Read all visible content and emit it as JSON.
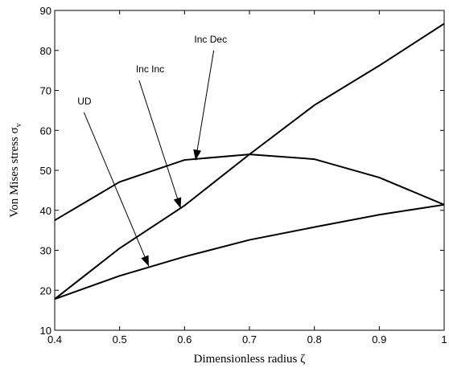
{
  "chart_data": {
    "type": "line",
    "title": "",
    "xlabel": "Dimensionless radius ζ",
    "ylabel": "Von Mises stress σ",
    "ylabel_sub": "v",
    "xlim": [
      0.4,
      1.0
    ],
    "ylim": [
      10,
      90
    ],
    "xticks": [
      "0.4",
      "0.5",
      "0.6",
      "0.7",
      "0.8",
      "0.9",
      "1"
    ],
    "yticks": [
      "10",
      "20",
      "30",
      "40",
      "50",
      "60",
      "70",
      "80",
      "90"
    ],
    "grid": false,
    "legend": "none",
    "x": [
      0.4,
      0.5,
      0.6,
      0.7,
      0.8,
      0.9,
      1.0
    ],
    "series": [
      {
        "values": [
          17.8,
          23.6,
          28.4,
          32.6,
          35.8,
          38.9,
          41.4
        ]
      },
      {
        "values": [
          17.8,
          30.5,
          41.2,
          54.0,
          66.3,
          76.2,
          86.7
        ]
      },
      {
        "values": [
          37.5,
          47.1,
          52.6,
          54.0,
          52.8,
          48.2,
          41.4
        ]
      }
    ],
    "annotations": [
      {
        "text": "UD",
        "text_at": [
          0.435,
          66.5
        ],
        "arrow_from": [
          0.445,
          64.5
        ],
        "arrow_to": [
          0.545,
          26.0
        ]
      },
      {
        "text": "Inc Inc",
        "text_at": [
          0.525,
          74.5
        ],
        "arrow_from": [
          0.53,
          72.5
        ],
        "arrow_to": [
          0.594,
          40.5
        ]
      },
      {
        "text": "Inc Dec",
        "text_at": [
          0.615,
          82.0
        ],
        "arrow_from": [
          0.645,
          80.0
        ],
        "arrow_to": [
          0.617,
          52.5
        ]
      }
    ]
  }
}
